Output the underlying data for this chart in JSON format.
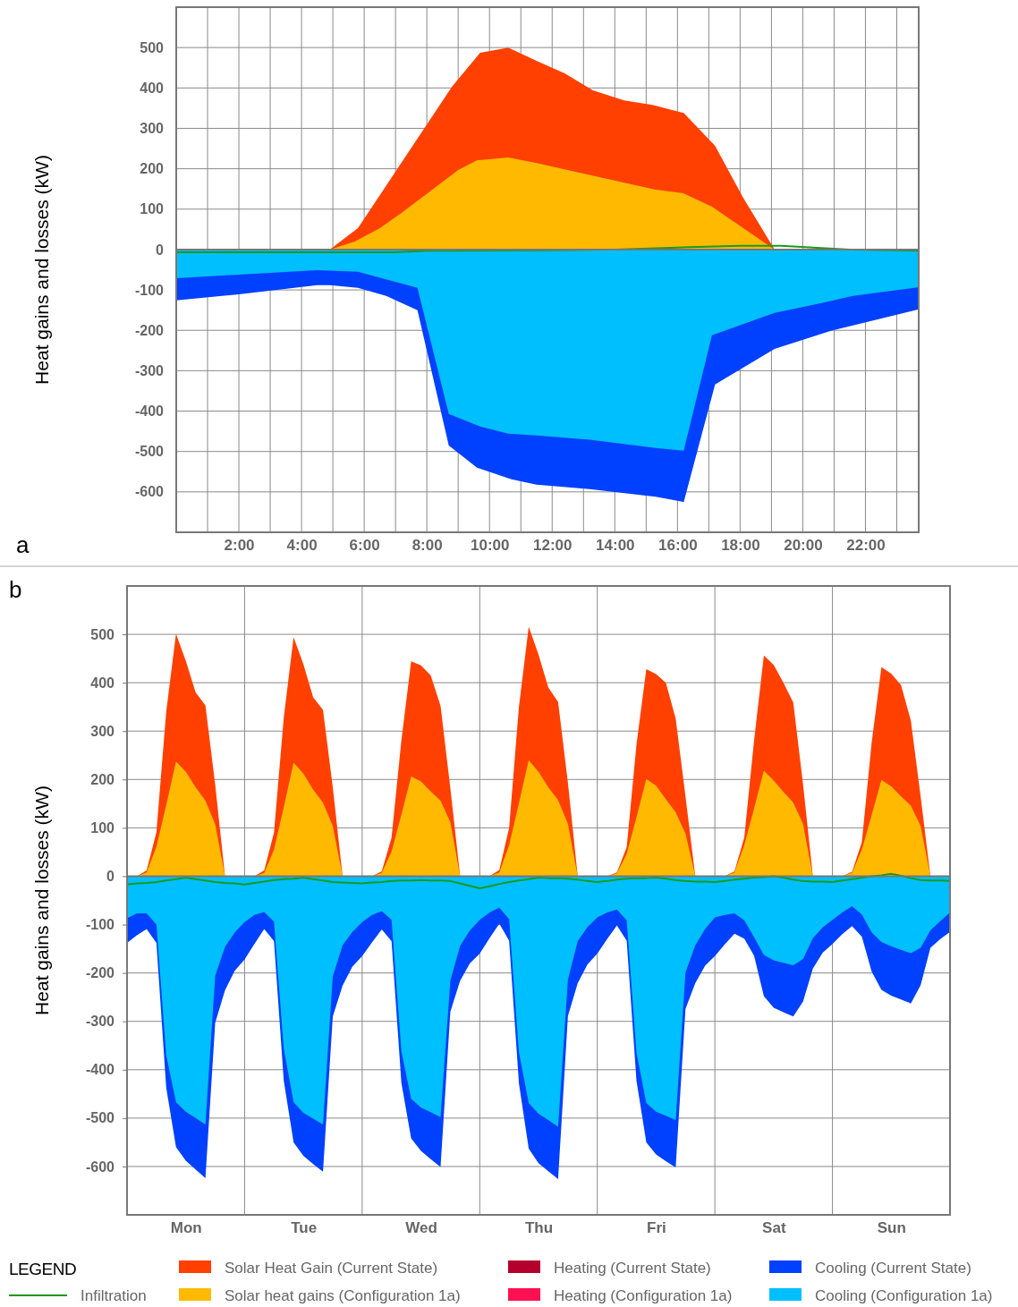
{
  "chart_data": [
    {
      "type": "area",
      "ylabel": "Heat gains and losses (kW)",
      "xlim": [
        0,
        23.7
      ],
      "ylim": [
        -700,
        600
      ],
      "xticks": [
        {
          "value": 1,
          "label": null
        },
        {
          "value": 2,
          "label": "2:00"
        },
        {
          "value": 3,
          "label": null
        },
        {
          "value": 4,
          "label": "4:00"
        },
        {
          "value": 5,
          "label": null
        },
        {
          "value": 6,
          "label": "6:00"
        },
        {
          "value": 7,
          "label": null
        },
        {
          "value": 8,
          "label": "8:00"
        },
        {
          "value": 9,
          "label": null
        },
        {
          "value": 10,
          "label": "10:00"
        },
        {
          "value": 11,
          "label": null
        },
        {
          "value": 12,
          "label": "12:00"
        },
        {
          "value": 13,
          "label": null
        },
        {
          "value": 14,
          "label": "14:00"
        },
        {
          "value": 15,
          "label": null
        },
        {
          "value": 16,
          "label": "16:00"
        },
        {
          "value": 17,
          "label": null
        },
        {
          "value": 18,
          "label": "18:00"
        },
        {
          "value": 19,
          "label": null
        },
        {
          "value": 20,
          "label": "20:00"
        },
        {
          "value": 21,
          "label": null
        },
        {
          "value": 22,
          "label": "22:00"
        },
        {
          "value": 23,
          "label": null
        }
      ],
      "yticks": [
        -600,
        -500,
        -400,
        -300,
        -200,
        -100,
        0,
        100,
        200,
        300,
        400,
        500
      ],
      "grid": true,
      "legend": false,
      "annotations": [
        "a"
      ],
      "series": [
        {
          "color": "#ff4000",
          "x": [
            4.9,
            5.8,
            8.8,
            9.7,
            10.6,
            11.5,
            12.4,
            13.3,
            14.3,
            15.2,
            16.2,
            17.2,
            18.1,
            19.1
          ],
          "values": [
            0,
            53,
            403,
            487,
            500,
            467,
            436,
            394,
            369,
            358,
            338,
            257,
            128,
            0
          ]
        },
        {
          "color": "#ffba00",
          "x": [
            4.9,
            5.7,
            6.5,
            7.2,
            9,
            9.6,
            10.6,
            11.5,
            12.9,
            15.3,
            16.2,
            17.1,
            19.1
          ],
          "values": [
            0,
            20,
            53,
            91,
            197,
            221,
            228,
            214,
            190,
            148,
            139,
            106,
            0
          ]
        },
        {
          "color": "#0040ff",
          "x": [
            0,
            2,
            4.5,
            4.9,
            5.8,
            6.7,
            7.7,
            8.7,
            9.6,
            10.7,
            11.5,
            13.2,
            15.3,
            16.2,
            17.2,
            19.1,
            20.9,
            23.7
          ],
          "values": [
            -126,
            -111,
            -88,
            -88,
            -95,
            -115,
            -150,
            -485,
            -540,
            -569,
            -582,
            -593,
            -612,
            -625,
            -334,
            -246,
            -201,
            -148
          ]
        },
        {
          "color": "#00bfff",
          "x": [
            0,
            4.5,
            5.8,
            7.7,
            8.7,
            9.7,
            10.6,
            11.5,
            13.2,
            15.3,
            16.2,
            17.1,
            19.1,
            20.7,
            21.6,
            23.7
          ],
          "values": [
            -71,
            -51,
            -55,
            -95,
            -407,
            -438,
            -456,
            -460,
            -471,
            -491,
            -498,
            -212,
            -157,
            -131,
            -115,
            -93
          ]
        },
        {
          "type": "line",
          "color": "#1a9a1a",
          "x": [
            0,
            5,
            7,
            8,
            12,
            14,
            16,
            18,
            19.3,
            21.5,
            23.7
          ],
          "values": [
            -7,
            -7,
            -7,
            -3,
            -2,
            0,
            5,
            9,
            9,
            0,
            -3
          ]
        }
      ]
    },
    {
      "type": "area",
      "ylabel": "Heat gains and losses (kW)",
      "ylim": [
        -700,
        600
      ],
      "categories": [
        null,
        null,
        null,
        null,
        null,
        null,
        "Mon",
        null,
        null,
        null,
        null,
        null,
        null,
        null,
        null,
        null,
        null,
        null,
        "Tue",
        null,
        null,
        null,
        null,
        null,
        null,
        null,
        null,
        null,
        null,
        null,
        "Wed",
        null,
        null,
        null,
        null,
        null,
        null,
        null,
        null,
        null,
        null,
        null,
        "Thu",
        null,
        null,
        null,
        null,
        null,
        null,
        null,
        null,
        null,
        null,
        null,
        "Fri",
        null,
        null,
        null,
        null,
        null,
        null,
        null,
        null,
        null,
        null,
        null,
        "Sat",
        null,
        null,
        null,
        null,
        null,
        null,
        null,
        null,
        null,
        null,
        null,
        "Sun",
        null,
        null,
        null,
        null,
        null,
        null
      ],
      "yticks": [
        -600,
        -500,
        -400,
        -300,
        -200,
        -100,
        0,
        100,
        200,
        300,
        400,
        500
      ],
      "grid": true,
      "legend": "bottom",
      "legend_title": "LEGEND",
      "annotations": [
        "b"
      ],
      "series": [
        {
          "type": "line",
          "name": "Infiltration",
          "color": "#1a9a1a",
          "values": [
            -17,
            -15,
            -14,
            -12,
            -9,
            -6,
            -3,
            -6,
            -9,
            -12,
            -14,
            -15,
            -17,
            -14,
            -11,
            -8,
            -6,
            -5,
            -3,
            -6,
            -9,
            -12,
            -13,
            -14,
            -15,
            -13,
            -12,
            -10,
            -9,
            -9,
            -8,
            -9,
            -9,
            -10,
            -15,
            -20,
            -25,
            -21,
            -16,
            -12,
            -9,
            -6,
            -3,
            -4,
            -4,
            -5,
            -7,
            -10,
            -12,
            -10,
            -7,
            -5,
            -4,
            -4,
            -3,
            -5,
            -8,
            -10,
            -11,
            -11,
            -12,
            -10,
            -7,
            -5,
            -3,
            -2,
            0,
            -3,
            -7,
            -10,
            -11,
            -11,
            -12,
            -9,
            -6,
            -3,
            0,
            2,
            5,
            1,
            -4,
            -8,
            -9,
            -9,
            -10
          ]
        },
        {
          "name": "Solar Heat Gain (Current State)",
          "color": "#ff4000",
          "values": [
            0,
            0,
            12,
            91,
            340,
            501,
            445,
            380,
            353,
            189,
            0,
            0,
            0,
            0,
            12,
            90,
            328,
            494,
            438,
            370,
            344,
            184,
            0,
            0,
            0,
            0,
            10,
            80,
            280,
            444,
            436,
            415,
            352,
            182,
            0,
            0,
            0,
            0,
            13,
            100,
            350,
            516,
            458,
            390,
            360,
            193,
            0,
            0,
            0,
            0,
            8,
            60,
            272,
            428,
            418,
            400,
            326,
            165,
            0,
            0,
            0,
            0,
            10,
            80,
            280,
            456,
            437,
            400,
            359,
            190,
            0,
            0,
            0,
            0,
            9,
            70,
            276,
            432,
            419,
            395,
            322,
            165,
            0,
            0,
            0
          ]
        },
        {
          "name": "Solar heat gains (Configuration 1a)",
          "color": "#ffba00",
          "values": [
            0,
            0,
            8,
            61,
            147,
            237,
            216,
            184,
            156,
            107,
            0,
            0,
            0,
            0,
            7,
            55,
            143,
            235,
            212,
            179,
            152,
            104,
            0,
            0,
            0,
            0,
            7,
            51,
            127,
            206,
            196,
            175,
            156,
            112,
            0,
            0,
            0,
            0,
            8,
            64,
            151,
            240,
            216,
            184,
            157,
            108,
            0,
            0,
            0,
            0,
            6,
            46,
            122,
            201,
            187,
            159,
            132,
            88,
            0,
            0,
            0,
            0,
            8,
            64,
            140,
            218,
            198,
            174,
            152,
            108,
            0,
            0,
            0,
            0,
            7,
            55,
            126,
            199,
            186,
            165,
            146,
            104,
            0,
            0,
            0
          ]
        },
        {
          "name": "Heating (Current State)",
          "color": "#b5002e",
          "values": [
            null,
            null,
            null,
            null,
            null,
            null,
            null,
            null,
            null,
            null,
            null,
            null,
            null,
            null,
            null,
            null,
            null,
            null,
            null,
            null,
            null,
            null,
            null,
            null,
            null,
            null,
            null,
            null,
            null,
            null,
            null,
            null,
            null,
            null,
            null,
            null,
            null,
            null,
            null,
            null,
            null,
            null,
            null,
            null,
            null,
            null,
            null,
            null,
            null,
            null,
            null,
            null,
            null,
            null,
            null,
            null,
            null,
            null,
            null,
            null,
            null,
            null,
            null,
            null,
            null,
            null,
            null,
            null,
            null,
            null,
            null,
            null,
            null,
            null,
            null,
            null,
            null,
            null,
            null,
            null,
            null,
            null,
            null,
            null,
            null
          ]
        },
        {
          "name": "Heating (Configuration 1a)",
          "color": "#ff1050",
          "values": [
            null,
            null,
            null,
            null,
            null,
            null,
            null,
            null,
            null,
            null,
            null,
            null,
            null,
            null,
            null,
            null,
            null,
            null,
            null,
            null,
            null,
            null,
            null,
            null,
            null,
            null,
            null,
            null,
            null,
            null,
            null,
            null,
            null,
            null,
            null,
            null,
            null,
            null,
            null,
            null,
            null,
            null,
            null,
            null,
            null,
            null,
            null,
            null,
            null,
            null,
            null,
            null,
            null,
            null,
            null,
            null,
            null,
            null,
            null,
            null,
            null,
            null,
            null,
            null,
            null,
            null,
            null,
            null,
            null,
            null,
            null,
            null,
            null,
            null,
            null,
            null,
            null,
            null,
            null,
            null,
            null,
            null,
            null,
            null,
            null
          ]
        },
        {
          "name": "Cooling (Current State)",
          "color": "#0040ff",
          "values": [
            -138,
            -122,
            -109,
            -138,
            -437,
            -560,
            -588,
            -606,
            -624,
            -303,
            -236,
            -195,
            -172,
            -140,
            -109,
            -134,
            -423,
            -550,
            -578,
            -595,
            -611,
            -290,
            -226,
            -187,
            -165,
            -137,
            -110,
            -134,
            -427,
            -542,
            -568,
            -585,
            -601,
            -280,
            -216,
            -180,
            -160,
            -128,
            -98,
            -133,
            -428,
            -563,
            -593,
            -610,
            -626,
            -289,
            -221,
            -182,
            -160,
            -130,
            -102,
            -133,
            -423,
            -550,
            -575,
            -589,
            -602,
            -274,
            -221,
            -185,
            -165,
            -141,
            -119,
            -129,
            -164,
            -248,
            -272,
            -281,
            -290,
            -259,
            -191,
            -158,
            -140,
            -120,
            -103,
            -125,
            -197,
            -235,
            -247,
            -255,
            -263,
            -225,
            -148,
            -130,
            -115
          ]
        },
        {
          "name": "Cooling (Configuration 1a)",
          "color": "#00bfff",
          "values": [
            -87,
            -77,
            -77,
            -100,
            -370,
            -467,
            -487,
            -500,
            -513,
            -206,
            -146,
            -116,
            -95,
            -80,
            -74,
            -94,
            -356,
            -467,
            -489,
            -501,
            -513,
            -207,
            -143,
            -115,
            -95,
            -80,
            -72,
            -90,
            -361,
            -460,
            -478,
            -488,
            -498,
            -216,
            -144,
            -112,
            -90,
            -75,
            -65,
            -89,
            -364,
            -469,
            -491,
            -504,
            -518,
            -214,
            -134,
            -105,
            -85,
            -75,
            -69,
            -91,
            -365,
            -469,
            -487,
            -495,
            -504,
            -199,
            -143,
            -109,
            -85,
            -80,
            -77,
            -91,
            -126,
            -163,
            -174,
            -179,
            -184,
            -171,
            -128,
            -106,
            -90,
            -75,
            -62,
            -79,
            -116,
            -136,
            -145,
            -152,
            -159,
            -148,
            -112,
            -93,
            -75
          ]
        }
      ]
    }
  ]
}
